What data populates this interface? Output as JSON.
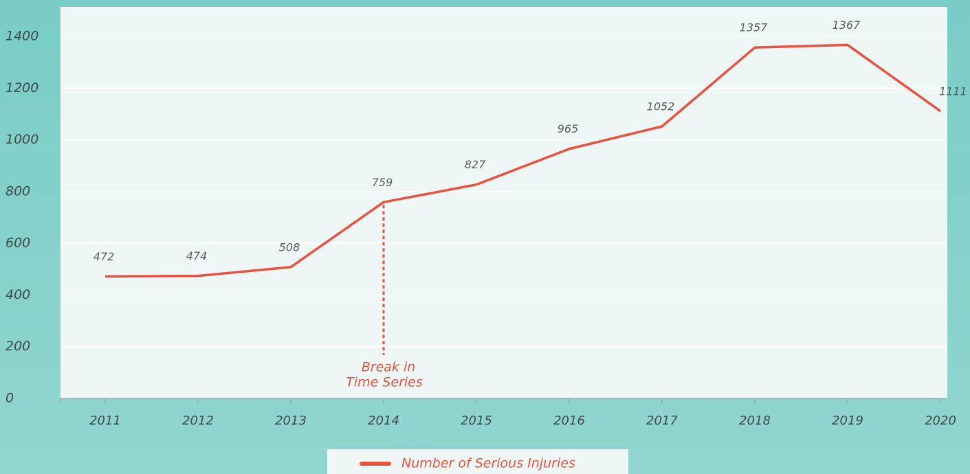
{
  "chart_data": {
    "type": "line",
    "categories": [
      "2011",
      "2012",
      "2013",
      "2014",
      "2015",
      "2016",
      "2017",
      "2018",
      "2019",
      "2020"
    ],
    "series": [
      {
        "name": "Number of Serious Injuries",
        "color": "#e8533f",
        "values": [
          472,
          474,
          508,
          759,
          827,
          965,
          1052,
          1357,
          1367,
          1111
        ]
      }
    ],
    "ylim": [
      0,
      1500
    ],
    "yticks": [
      0,
      200,
      400,
      600,
      800,
      1000,
      1200,
      1400
    ],
    "grid": true,
    "legend": "bottom",
    "data_labels": true,
    "annotation": {
      "category": "2014",
      "lines": [
        "Break in",
        "Time Series"
      ]
    }
  }
}
